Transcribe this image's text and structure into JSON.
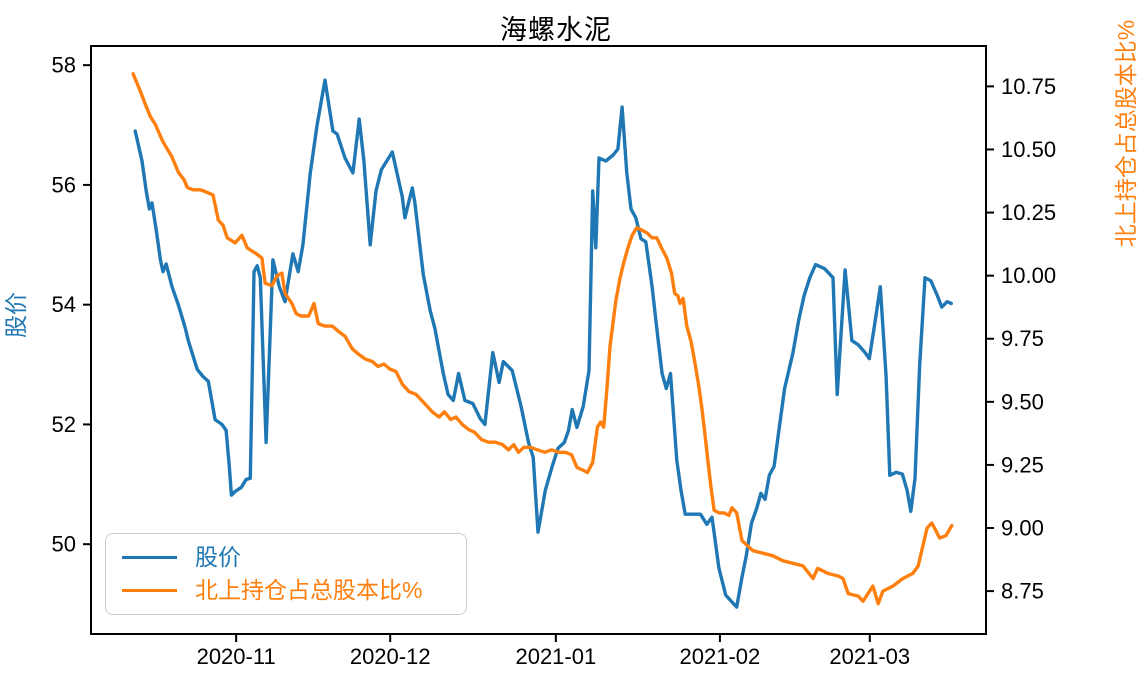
{
  "chart_data": {
    "type": "line",
    "title": "海螺水泥",
    "x_axis": {
      "unit": "days since 2020-10-12",
      "range": [
        -8.4,
        161.8
      ],
      "ticks": [
        {
          "d": 19.2,
          "label": "2020-11"
        },
        {
          "d": 48.5,
          "label": "2020-12"
        },
        {
          "d": 80.0,
          "label": "2021-01"
        },
        {
          "d": 111.2,
          "label": "2021-02"
        },
        {
          "d": 139.7,
          "label": "2021-03"
        }
      ]
    },
    "left_axis": {
      "label": "股价",
      "color": "#1f77b4",
      "range": [
        48.5,
        58.32
      ],
      "ticks": [
        {
          "v": 58,
          "label": "58"
        },
        {
          "v": 56,
          "label": "56"
        },
        {
          "v": 54,
          "label": "54"
        },
        {
          "v": 52,
          "label": "52"
        },
        {
          "v": 50,
          "label": "50"
        }
      ]
    },
    "right_axis": {
      "label": "北上持仓占总股本比%",
      "color": "#ff7f0e",
      "range": [
        8.58,
        10.91
      ],
      "ticks": [
        {
          "v": 10.75,
          "label": "10.75"
        },
        {
          "v": 10.5,
          "label": "10.50"
        },
        {
          "v": 10.25,
          "label": "10.25"
        },
        {
          "v": 10.0,
          "label": "10.00"
        },
        {
          "v": 9.75,
          "label": "9.75"
        },
        {
          "v": 9.5,
          "label": "9.50"
        },
        {
          "v": 9.25,
          "label": "9.25"
        },
        {
          "v": 9.0,
          "label": "9.00"
        },
        {
          "v": 8.75,
          "label": "8.75"
        }
      ]
    },
    "legend_position": "lower left",
    "series": [
      {
        "name": "股价",
        "axis": "left",
        "color": "#1f77b4",
        "points": [
          [
            0,
            56.9
          ],
          [
            1.3,
            56.4
          ],
          [
            2.1,
            55.9
          ],
          [
            2.7,
            55.6
          ],
          [
            3.2,
            55.7
          ],
          [
            4,
            55.25
          ],
          [
            4.8,
            54.75
          ],
          [
            5.3,
            54.55
          ],
          [
            5.9,
            54.68
          ],
          [
            7,
            54.3
          ],
          [
            8.2,
            54
          ],
          [
            9.5,
            53.62
          ],
          [
            10.1,
            53.4
          ],
          [
            10.8,
            53.2
          ],
          [
            11.8,
            52.92
          ],
          [
            12.9,
            52.8
          ],
          [
            13.9,
            52.72
          ],
          [
            15.2,
            52.08
          ],
          [
            16.5,
            52
          ],
          [
            17.3,
            51.9
          ],
          [
            17.9,
            51.3
          ],
          [
            18.3,
            50.82
          ],
          [
            19,
            50.88
          ],
          [
            20.2,
            50.95
          ],
          [
            21.1,
            51.08
          ],
          [
            21.9,
            51.1
          ],
          [
            22.3,
            53
          ],
          [
            22.6,
            54.55
          ],
          [
            23.2,
            54.65
          ],
          [
            23.8,
            54.45
          ],
          [
            24.9,
            51.7
          ],
          [
            26.2,
            54.75
          ],
          [
            27.4,
            54.3
          ],
          [
            28.5,
            54.05
          ],
          [
            30,
            54.85
          ],
          [
            31,
            54.55
          ],
          [
            31.9,
            55
          ],
          [
            33.3,
            56.2
          ],
          [
            34.6,
            57
          ],
          [
            36.1,
            57.75
          ],
          [
            37.6,
            56.9
          ],
          [
            38.4,
            56.85
          ],
          [
            39.9,
            56.45
          ],
          [
            41.4,
            56.2
          ],
          [
            42.6,
            57.1
          ],
          [
            43.5,
            56.4
          ],
          [
            44.7,
            55
          ],
          [
            45.8,
            55.9
          ],
          [
            46.8,
            56.25
          ],
          [
            48.9,
            56.55
          ],
          [
            50.8,
            55.8
          ],
          [
            51.3,
            55.45
          ],
          [
            52.7,
            55.95
          ],
          [
            53.2,
            55.7
          ],
          [
            54.8,
            54.5
          ],
          [
            56.1,
            53.9
          ],
          [
            57,
            53.6
          ],
          [
            58.6,
            52.85
          ],
          [
            59.5,
            52.5
          ],
          [
            60.5,
            52.4
          ],
          [
            61.5,
            52.85
          ],
          [
            62.7,
            52.4
          ],
          [
            64.2,
            52.35
          ],
          [
            65.6,
            52.1
          ],
          [
            66.5,
            52
          ],
          [
            68,
            53.2
          ],
          [
            69.2,
            52.7
          ],
          [
            70,
            53.05
          ],
          [
            71.7,
            52.9
          ],
          [
            73.4,
            52.3
          ],
          [
            74.8,
            51.7
          ],
          [
            75.7,
            51.45
          ],
          [
            76.6,
            50.2
          ],
          [
            78,
            50.9
          ],
          [
            79.3,
            51.3
          ],
          [
            80.4,
            51.6
          ],
          [
            81.6,
            51.7
          ],
          [
            82.4,
            51.9
          ],
          [
            83.1,
            52.25
          ],
          [
            84,
            51.95
          ],
          [
            85.2,
            52.3
          ],
          [
            86.3,
            52.9
          ],
          [
            87,
            55.9
          ],
          [
            87.6,
            54.95
          ],
          [
            88.2,
            56.45
          ],
          [
            89.5,
            56.4
          ],
          [
            90.9,
            56.5
          ],
          [
            91.8,
            56.6
          ],
          [
            92.6,
            57.3
          ],
          [
            93.5,
            56.2
          ],
          [
            94.3,
            55.6
          ],
          [
            95.2,
            55.45
          ],
          [
            96.2,
            55.1
          ],
          [
            97.1,
            55.05
          ],
          [
            98.3,
            54.3
          ],
          [
            99.2,
            53.6
          ],
          [
            100.2,
            52.85
          ],
          [
            101,
            52.6
          ],
          [
            101.8,
            52.85
          ],
          [
            103,
            51.4
          ],
          [
            103.8,
            50.9
          ],
          [
            104.6,
            50.5
          ],
          [
            106,
            50.5
          ],
          [
            107.5,
            50.5
          ],
          [
            108.7,
            50.33
          ],
          [
            109.7,
            50.45
          ],
          [
            111,
            49.6
          ],
          [
            112.3,
            49.15
          ],
          [
            114.4,
            48.95
          ],
          [
            115.4,
            49.45
          ],
          [
            116.2,
            49.8
          ],
          [
            117.2,
            50.35
          ],
          [
            118.2,
            50.6
          ],
          [
            119,
            50.85
          ],
          [
            119.8,
            50.75
          ],
          [
            120.6,
            51.15
          ],
          [
            121.5,
            51.3
          ],
          [
            122.5,
            51.95
          ],
          [
            123.5,
            52.6
          ],
          [
            125.1,
            53.2
          ],
          [
            126.2,
            53.75
          ],
          [
            127.2,
            54.15
          ],
          [
            128.3,
            54.45
          ],
          [
            129.4,
            54.67
          ],
          [
            131.1,
            54.6
          ],
          [
            132.7,
            54.45
          ],
          [
            133.5,
            52.5
          ],
          [
            135,
            54.58
          ],
          [
            136.3,
            53.4
          ],
          [
            137.5,
            53.33
          ],
          [
            138.8,
            53.2
          ],
          [
            139.6,
            53.1
          ],
          [
            140.5,
            53.6
          ],
          [
            141.7,
            54.3
          ],
          [
            142.8,
            52.8
          ],
          [
            143.5,
            51.15
          ],
          [
            144.7,
            51.2
          ],
          [
            145.9,
            51.17
          ],
          [
            146.8,
            50.9
          ],
          [
            147.5,
            50.55
          ],
          [
            148.3,
            51.1
          ],
          [
            149.2,
            53
          ],
          [
            150.2,
            54.45
          ],
          [
            151.3,
            54.4
          ],
          [
            152.5,
            54.16
          ],
          [
            153.4,
            53.96
          ],
          [
            154.4,
            54.05
          ],
          [
            155.2,
            54.02
          ]
        ]
      },
      {
        "name": "北上持仓占总股本比%",
        "axis": "right",
        "color": "#ff7f0e",
        "points": [
          [
            -0.4,
            10.8
          ],
          [
            1,
            10.73
          ],
          [
            1.9,
            10.68
          ],
          [
            2.9,
            10.63
          ],
          [
            3.8,
            10.6
          ],
          [
            5.3,
            10.53
          ],
          [
            7,
            10.47
          ],
          [
            8.2,
            10.41
          ],
          [
            9.3,
            10.38
          ],
          [
            9.9,
            10.35
          ],
          [
            11,
            10.34
          ],
          [
            12.4,
            10.34
          ],
          [
            13.7,
            10.33
          ],
          [
            14.8,
            10.32
          ],
          [
            15.8,
            10.22
          ],
          [
            16.7,
            10.2
          ],
          [
            17.5,
            10.15
          ],
          [
            19,
            10.13
          ],
          [
            20.3,
            10.16
          ],
          [
            21.3,
            10.11
          ],
          [
            22.8,
            10.09
          ],
          [
            24.1,
            10.07
          ],
          [
            24.7,
            9.97
          ],
          [
            26,
            9.96
          ],
          [
            27,
            10
          ],
          [
            27.9,
            10.01
          ],
          [
            28.5,
            9.93
          ],
          [
            29.8,
            9.89
          ],
          [
            30.6,
            9.85
          ],
          [
            31.5,
            9.84
          ],
          [
            33,
            9.84
          ],
          [
            34,
            9.89
          ],
          [
            34.8,
            9.81
          ],
          [
            36.1,
            9.8
          ],
          [
            37.5,
            9.8
          ],
          [
            38.6,
            9.78
          ],
          [
            39.9,
            9.76
          ],
          [
            41.3,
            9.71
          ],
          [
            42.4,
            9.69
          ],
          [
            43.7,
            9.67
          ],
          [
            45.1,
            9.66
          ],
          [
            46.2,
            9.64
          ],
          [
            47.3,
            9.65
          ],
          [
            48.4,
            9.63
          ],
          [
            49.6,
            9.62
          ],
          [
            50.8,
            9.57
          ],
          [
            52.1,
            9.54
          ],
          [
            53.4,
            9.53
          ],
          [
            55.2,
            9.49
          ],
          [
            56.5,
            9.46
          ],
          [
            57.8,
            9.44
          ],
          [
            58.8,
            9.46
          ],
          [
            60,
            9.43
          ],
          [
            61,
            9.44
          ],
          [
            62.2,
            9.41
          ],
          [
            63.4,
            9.39
          ],
          [
            64.5,
            9.38
          ],
          [
            65.9,
            9.35
          ],
          [
            67.2,
            9.34
          ],
          [
            68.5,
            9.34
          ],
          [
            69.9,
            9.33
          ],
          [
            71,
            9.31
          ],
          [
            72,
            9.33
          ],
          [
            72.9,
            9.3
          ],
          [
            73.9,
            9.32
          ],
          [
            75.2,
            9.32
          ],
          [
            76.5,
            9.31
          ],
          [
            77.9,
            9.3
          ],
          [
            79.2,
            9.31
          ],
          [
            80.5,
            9.3
          ],
          [
            81.8,
            9.3
          ],
          [
            83,
            9.29
          ],
          [
            84,
            9.24
          ],
          [
            85.1,
            9.23
          ],
          [
            86,
            9.22
          ],
          [
            87,
            9.26
          ],
          [
            87.9,
            9.4
          ],
          [
            88.5,
            9.42
          ],
          [
            89.1,
            9.4
          ],
          [
            89.7,
            9.55
          ],
          [
            90.3,
            9.72
          ],
          [
            90.8,
            9.8
          ],
          [
            91.4,
            9.9
          ],
          [
            92.2,
            9.99
          ],
          [
            92.9,
            10.05
          ],
          [
            93.7,
            10.11
          ],
          [
            94.5,
            10.16
          ],
          [
            95.4,
            10.19
          ],
          [
            96.4,
            10.18
          ],
          [
            97.3,
            10.17
          ],
          [
            98.3,
            10.15
          ],
          [
            99.2,
            10.15
          ],
          [
            100.1,
            10.11
          ],
          [
            101.1,
            10.07
          ],
          [
            102,
            10.01
          ],
          [
            102.6,
            9.93
          ],
          [
            103.2,
            9.92
          ],
          [
            103.6,
            9.89
          ],
          [
            104.2,
            9.91
          ],
          [
            104.9,
            9.8
          ],
          [
            105.7,
            9.74
          ],
          [
            106.4,
            9.66
          ],
          [
            107.2,
            9.56
          ],
          [
            107.8,
            9.47
          ],
          [
            108.3,
            9.38
          ],
          [
            108.9,
            9.27
          ],
          [
            109.5,
            9.16
          ],
          [
            110.1,
            9.07
          ],
          [
            111,
            9.06
          ],
          [
            112,
            9.06
          ],
          [
            112.9,
            9.05
          ],
          [
            113.5,
            9.08
          ],
          [
            114.4,
            9.06
          ],
          [
            115.4,
            8.95
          ],
          [
            117.5,
            8.91
          ],
          [
            119.4,
            8.9
          ],
          [
            121.3,
            8.89
          ],
          [
            123.2,
            8.87
          ],
          [
            125.1,
            8.86
          ],
          [
            127,
            8.85
          ],
          [
            128.9,
            8.8
          ],
          [
            129.8,
            8.84
          ],
          [
            130.8,
            8.83
          ],
          [
            131.7,
            8.82
          ],
          [
            133.7,
            8.81
          ],
          [
            134.6,
            8.8
          ],
          [
            135.6,
            8.74
          ],
          [
            137.5,
            8.73
          ],
          [
            138.4,
            8.71
          ],
          [
            140.3,
            8.77
          ],
          [
            141.3,
            8.7
          ],
          [
            142.2,
            8.75
          ],
          [
            144.1,
            8.77
          ],
          [
            146,
            8.8
          ],
          [
            147.9,
            8.82
          ],
          [
            148.9,
            8.85
          ],
          [
            149.8,
            8.93
          ],
          [
            150.6,
            9
          ],
          [
            151.5,
            9.02
          ],
          [
            153,
            8.96
          ],
          [
            154.2,
            8.97
          ],
          [
            155.3,
            9.01
          ]
        ]
      }
    ]
  }
}
